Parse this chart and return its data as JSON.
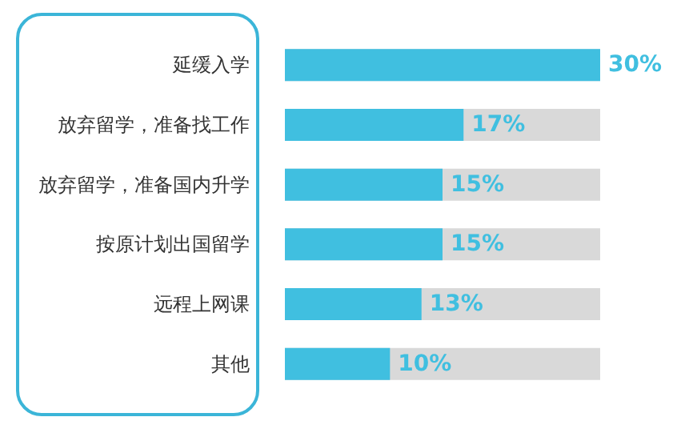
{
  "chart_data": {
    "type": "bar",
    "orientation": "horizontal",
    "categories": [
      "延缓入学",
      "放弃留学，准备找工作",
      "放弃留学，准备国内升学",
      "按原计划出国留学",
      "远程上网课",
      "其他"
    ],
    "values": [
      30,
      17,
      15,
      15,
      13,
      10
    ],
    "value_labels": [
      "30%",
      "17%",
      "15%",
      "15%",
      "13%",
      "10%"
    ],
    "color": "#40bfe0",
    "grid": false
  }
}
